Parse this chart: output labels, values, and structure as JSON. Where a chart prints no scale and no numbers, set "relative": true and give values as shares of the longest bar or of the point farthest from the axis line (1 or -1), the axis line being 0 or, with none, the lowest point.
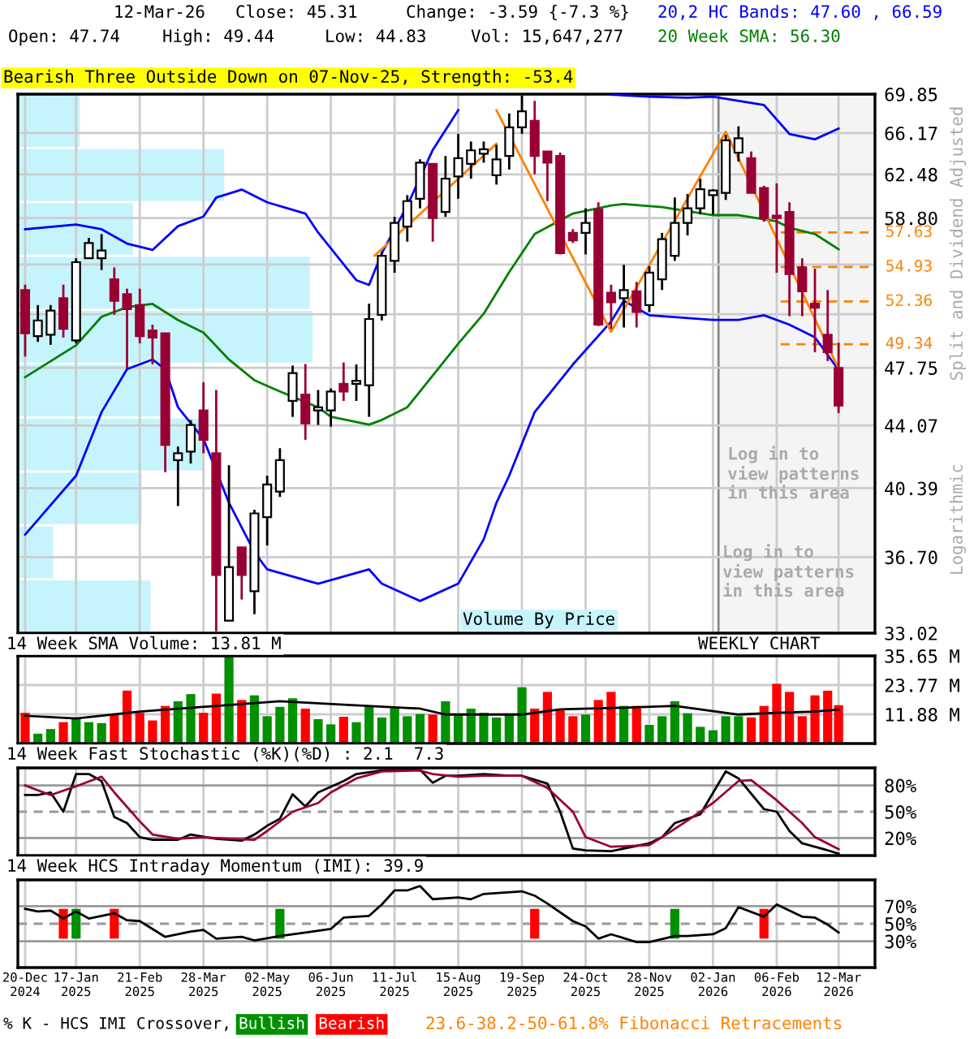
{
  "chart_data": [
    {
      "type": "candlestick",
      "title": "Bearish Three Outside Down on 07-Nov-25, Strength: -53.4",
      "ylabel": "Split and Dividend Adjusted",
      "log": true,
      "grid": true,
      "legend": "top right",
      "tick_labels": "y",
      "x": [
        "2024-12-20",
        "2024-12-27",
        "2025-01-03",
        "2025-01-10",
        "2025-01-17",
        "2025-01-24",
        "2025-01-31",
        "2025-02-07",
        "2025-02-14",
        "2025-02-21",
        "2025-02-28",
        "2025-03-07",
        "2025-03-14",
        "2025-03-21",
        "2025-03-28",
        "2025-04-04",
        "2025-04-11",
        "2025-04-18",
        "2025-04-25",
        "2025-05-02",
        "2025-05-09",
        "2025-05-16",
        "2025-05-23",
        "2025-05-30",
        "2025-06-06",
        "2025-06-13",
        "2025-06-20",
        "2025-06-27",
        "2025-07-04",
        "2025-07-11",
        "2025-07-18",
        "2025-07-25",
        "2025-08-01",
        "2025-08-08",
        "2025-08-15",
        "2025-08-22",
        "2025-08-29",
        "2025-09-05",
        "2025-09-12",
        "2025-09-19",
        "2025-09-26",
        "2025-10-03",
        "2025-10-10",
        "2025-10-17",
        "2025-10-24",
        "2025-10-31",
        "2025-11-07",
        "2025-11-14",
        "2025-11-21",
        "2025-11-28",
        "2025-12-05",
        "2025-12-12",
        "2025-12-19",
        "2025-12-26",
        "2026-01-02",
        "2026-01-09",
        "2026-01-16",
        "2026-01-23",
        "2026-01-30",
        "2026-02-06",
        "2026-02-13",
        "2026-02-20",
        "2026-02-27",
        "2026-03-06",
        "2026-03-12"
      ],
      "ohlc": [
        [
          53.2,
          53.6,
          48.5,
          50.1
        ],
        [
          49.9,
          52.1,
          49.5,
          51.0
        ],
        [
          50.0,
          52.1,
          49.3,
          51.7
        ],
        [
          52.6,
          53.6,
          49.8,
          50.4
        ],
        [
          49.6,
          55.6,
          49.4,
          55.3
        ],
        [
          55.6,
          57.2,
          55.6,
          56.8
        ],
        [
          55.6,
          57.5,
          54.7,
          56.2
        ],
        [
          54.0,
          54.9,
          51.4,
          52.4
        ],
        [
          52.9,
          53.3,
          47.7,
          51.8
        ],
        [
          52.1,
          53.3,
          49.4,
          49.9
        ],
        [
          50.3,
          50.7,
          47.97,
          49.8
        ],
        [
          50.1,
          50.1,
          41.3,
          42.9
        ],
        [
          42.0,
          42.8,
          39.4,
          42.4
        ],
        [
          42.5,
          44.4,
          41.8,
          44.1
        ],
        [
          45.0,
          46.8,
          42.4,
          43.2
        ],
        [
          42.4,
          46.3,
          33.1,
          35.8
        ],
        [
          33.6,
          41.7,
          33.6,
          36.2
        ],
        [
          37.2,
          37.2,
          34.6,
          35.8
        ],
        [
          35.0,
          39.2,
          33.9,
          39.0
        ],
        [
          38.8,
          41.1,
          37.3,
          40.6
        ],
        [
          40.2,
          42.7,
          39.9,
          42.0
        ],
        [
          45.6,
          47.9,
          44.6,
          47.4
        ],
        [
          46.0,
          48.0,
          43.2,
          44.2
        ],
        [
          45.0,
          46.3,
          44.1,
          45.2
        ],
        [
          45.0,
          46.4,
          44.0,
          46.2
        ],
        [
          46.7,
          48.1,
          45.6,
          46.2
        ],
        [
          46.7,
          47.97,
          45.6,
          46.9
        ],
        [
          46.6,
          52.2,
          44.6,
          51.1
        ],
        [
          51.4,
          56.1,
          51.0,
          55.8
        ],
        [
          55.4,
          58.9,
          54.5,
          58.4
        ],
        [
          58.1,
          60.7,
          56.9,
          60.2
        ],
        [
          60.4,
          63.8,
          59.6,
          63.5
        ],
        [
          63.4,
          63.4,
          56.9,
          58.8
        ],
        [
          59.3,
          64.1,
          58.9,
          62.1
        ],
        [
          62.3,
          66.1,
          60.4,
          63.9
        ],
        [
          63.4,
          65.4,
          62.1,
          64.6
        ],
        [
          64.3,
          65.4,
          63.5,
          64.7
        ],
        [
          62.4,
          65.1,
          61.6,
          63.8
        ],
        [
          64.1,
          68.0,
          62.9,
          66.7
        ],
        [
          66.7,
          69.7,
          66.1,
          68.2
        ],
        [
          67.3,
          69.2,
          62.5,
          64.1
        ],
        [
          64.5,
          64.5,
          60.2,
          63.5
        ],
        [
          64.1,
          64.4,
          55.9,
          56.0
        ],
        [
          57.6,
          57.9,
          56.8,
          57.0
        ],
        [
          57.6,
          59.6,
          55.9,
          58.4
        ],
        [
          59.5,
          60.1,
          50.6,
          50.7
        ],
        [
          53.0,
          53.6,
          50.4,
          52.3
        ],
        [
          52.6,
          55.1,
          50.5,
          53.2
        ],
        [
          53.1,
          53.8,
          50.5,
          51.6
        ],
        [
          52.1,
          55.0,
          51.6,
          54.5
        ],
        [
          54.0,
          57.6,
          53.2,
          57.1
        ],
        [
          55.8,
          60.5,
          55.4,
          58.4
        ],
        [
          58.4,
          60.8,
          57.4,
          59.6
        ],
        [
          59.6,
          62.1,
          59.1,
          61.2
        ],
        [
          60.7,
          61.2,
          59.1,
          61.1
        ],
        [
          60.9,
          66.0,
          60.3,
          65.5
        ],
        [
          64.4,
          66.8,
          63.6,
          65.7
        ],
        [
          63.9,
          64.5,
          60.9,
          60.9
        ],
        [
          61.3,
          61.5,
          58.5,
          58.8
        ],
        [
          59.0,
          61.7,
          54.5,
          58.8
        ],
        [
          59.3,
          60.1,
          51.3,
          54.4
        ],
        [
          54.9,
          55.6,
          51.3,
          53.1
        ],
        [
          52.2,
          54.8,
          48.8,
          51.9
        ],
        [
          50.0,
          53.2,
          48.2,
          48.8
        ],
        [
          47.74,
          49.44,
          44.83,
          45.31
        ]
      ],
      "colors": [
        "#990033",
        "#ffffff",
        "#ffffff",
        "#990033",
        "#ffffff",
        "#ffffff",
        "#ffffff",
        "#990033",
        "#990033",
        "#990033",
        "#990033",
        "#990033",
        "#ffffff",
        "#ffffff",
        "#990033",
        "#990033",
        "#ffffff",
        "#990033",
        "#ffffff",
        "#ffffff",
        "#ffffff",
        "#ffffff",
        "#990033",
        "#ffffff",
        "#ffffff",
        "#990033",
        "#ffffff",
        "#ffffff",
        "#ffffff",
        "#ffffff",
        "#ffffff",
        "#ffffff",
        "#990033",
        "#ffffff",
        "#ffffff",
        "#ffffff",
        "#ffffff",
        "#ffffff",
        "#ffffff",
        "#ffffff",
        "#990033",
        "#990033",
        "#990033",
        "#990033",
        "#ffffff",
        "#990033",
        "#990033",
        "#ffffff",
        "#990033",
        "#ffffff",
        "#ffffff",
        "#ffffff",
        "#ffffff",
        "#ffffff",
        "#ffffff",
        "#ffffff",
        "#ffffff",
        "#990033",
        "#990033",
        "#990033",
        "#990033",
        "#990033",
        "#990033",
        "#990033",
        "#990033"
      ],
      "series": [
        {
          "type": "line",
          "name": "20,2 HC Bands: 47.60 , 66.59",
          "color": "#0000ff",
          "x": [
            "2024-12-20",
            "2025-01-17",
            "2025-01-31",
            "2025-02-14",
            "2025-02-28",
            "2025-03-14",
            "2025-03-28",
            "2025-04-04",
            "2025-04-18",
            "2025-05-02",
            "2025-05-23",
            "2025-05-30",
            "2025-06-20",
            "2025-06-27",
            "2025-07-04",
            "2025-07-18",
            "2025-08-01",
            "2025-08-15",
            "2025-08-22",
            "2025-11-07",
            "2025-11-28",
            "2025-12-19",
            "2026-01-02",
            "2026-01-30",
            "2026-02-13",
            "2026-02-27",
            "2026-03-12"
          ],
          "values": [
            57.89,
            58.27,
            57.89,
            56.75,
            56.25,
            58.14,
            58.92,
            60.5,
            61.17,
            60.1,
            59.17,
            57.63,
            53.93,
            53.58,
            56.0,
            59.83,
            64.64,
            68.32,
            null,
            69.8,
            69.6,
            69.5,
            69.6,
            68.8,
            66.09,
            65.6,
            66.59
          ]
        },
        {
          "type": "line",
          "color": "#0000ff",
          "x": [
            "2024-12-20",
            "2025-01-17",
            "2025-01-31",
            "2025-02-14",
            "2025-02-28",
            "2025-03-07",
            "2025-03-14",
            "2025-03-28",
            "2025-04-11",
            "2025-04-25",
            "2025-05-02",
            "2025-05-30",
            "2025-06-27",
            "2025-07-04",
            "2025-07-25",
            "2025-08-15",
            "2025-08-29",
            "2025-09-05",
            "2025-09-12",
            "2025-09-26",
            "2025-10-17",
            "2025-11-07",
            "2025-11-14",
            "2025-11-28",
            "2026-01-02",
            "2026-01-16",
            "2026-01-30",
            "2026-02-13",
            "2026-02-27",
            "2026-03-12"
          ],
          "values": [
            37.87,
            41.1,
            44.9,
            47.66,
            48.3,
            47.66,
            45.2,
            43.25,
            39.58,
            36.96,
            36.08,
            35.37,
            36.08,
            35.37,
            34.53,
            35.37,
            37.62,
            39.58,
            41.1,
            44.9,
            47.97,
            50.92,
            52.41,
            51.37,
            51.03,
            51.03,
            51.37,
            50.7,
            49.82,
            47.6
          ]
        },
        {
          "type": "line",
          "name": "20 Week SMA: 56.30",
          "color": "#008000",
          "x": [
            "2024-12-20",
            "2025-01-17",
            "2025-01-31",
            "2025-02-14",
            "2025-02-28",
            "2025-03-14",
            "2025-03-28",
            "2025-04-11",
            "2025-04-25",
            "2025-05-09",
            "2025-05-30",
            "2025-06-06",
            "2025-06-27",
            "2025-07-04",
            "2025-07-18",
            "2025-08-01",
            "2025-08-15",
            "2025-08-29",
            "2025-09-12",
            "2025-09-26",
            "2025-10-17",
            "2025-11-07",
            "2025-11-14",
            "2025-12-05",
            "2026-01-02",
            "2026-01-16",
            "2026-02-06",
            "2026-02-13",
            "2026-02-27",
            "2026-03-12"
          ],
          "values": [
            47.13,
            49.27,
            51.26,
            51.95,
            52.18,
            51.03,
            50.14,
            48.3,
            46.93,
            46.21,
            45.2,
            44.61,
            44.12,
            44.41,
            45.2,
            47.24,
            49.38,
            51.48,
            54.54,
            57.51,
            59.17,
            59.83,
            59.96,
            59.7,
            59.04,
            59.04,
            58.53,
            58.01,
            57.51,
            56.3
          ]
        },
        {
          "type": "line",
          "color": "#ff8000",
          "x": [
            "2025-06-30",
            "2025-09-05"
          ],
          "values": [
            55.8,
            65.2
          ]
        },
        {
          "type": "line",
          "color": "#ff8000",
          "x": [
            "2025-09-05",
            "2025-11-07",
            "2026-01-09",
            "2026-03-12"
          ],
          "values": [
            68.3,
            50.2,
            66.3,
            47.7
          ]
        }
      ],
      "ref_lines": [
        {
          "axis": "y",
          "value": 57.63,
          "label": "57.63",
          "color": "#ff8000",
          "line_style": "dashed"
        },
        {
          "axis": "y",
          "value": 54.93,
          "label": "54.93",
          "color": "#ff8000",
          "line_style": "dashed"
        },
        {
          "axis": "y",
          "value": 52.36,
          "label": "52.36",
          "color": "#ff8000",
          "line_style": "dashed"
        },
        {
          "axis": "y",
          "value": 49.34,
          "label": "49.34",
          "color": "#ff8000",
          "line_style": "dashed"
        }
      ],
      "bands": [
        {
          "axis": "x",
          "from": "2026-01-05",
          "to": "2026-04-01",
          "label": "Log in to\nview patterns\nin this area",
          "color": "#f4f4f4"
        }
      ],
      "annotations": [
        "12-Mar-26",
        "Close: 45.31",
        "Change: -3.59 {-7.3 %}",
        "Open: 47.74",
        "High: 49.44",
        "Low: 44.83",
        "Vol: 15,647,277",
        "Logarithmic",
        "Log in to\nview patterns\nin this area",
        "23.6-38.2-50-61.8% Fibonacci Retracements",
        "Volume By Price"
      ],
      "xlim": [
        "2024-12-16",
        "2026-04-01"
      ],
      "ylim": [
        33.02,
        69.85
      ],
      "xticks": [
        {
          "value": "2024-12-20",
          "label": null
        },
        {
          "value": "2025-01-17",
          "label": null
        },
        {
          "value": "2025-02-21",
          "label": null
        },
        {
          "value": "2025-03-28",
          "label": null
        },
        {
          "value": "2025-05-02",
          "label": null
        },
        {
          "value": "2025-06-06",
          "label": null
        },
        {
          "value": "2025-07-11",
          "label": null
        },
        {
          "value": "2025-08-15",
          "label": null
        },
        {
          "value": "2025-09-19",
          "label": null
        },
        {
          "value": "2025-10-24",
          "label": null
        },
        {
          "value": "2025-11-28",
          "label": null
        },
        {
          "value": "2026-01-02",
          "label": null
        },
        {
          "value": "2026-02-06",
          "label": null
        },
        {
          "value": "2026-03-12",
          "label": null
        }
      ],
      "yticks": [
        69.85,
        66.17,
        62.48,
        {
          "value": 58.8,
          "label": "58.80"
        },
        {
          "value": 55.12,
          "label": null
        },
        {
          "value": 51.44,
          "label": null
        },
        47.75,
        44.07,
        40.39,
        {
          "value": 36.7,
          "label": "36.70"
        },
        33.02
      ]
    },
    {
      "type": "bar",
      "orientation": "horizontal",
      "relative": true,
      "color": "#c6f4fc",
      "categories": [
        null,
        null,
        null,
        null,
        null,
        null,
        null,
        null,
        null,
        null
      ],
      "values": [
        0.21,
        0.7,
        0.39,
        0.99,
        1,
        0.5,
        0.63,
        0.42,
        0.12,
        0.45
      ]
    },
    {
      "type": "bar",
      "title": "14 Week SMA Volume: 13.81 M",
      "grid": true,
      "tick_labels": "y",
      "annotations": [
        "WEEKLY CHART"
      ],
      "x": [
        "2024-12-20",
        "2024-12-27",
        "2025-01-03",
        "2025-01-10",
        "2025-01-17",
        "2025-01-24",
        "2025-01-31",
        "2025-02-07",
        "2025-02-14",
        "2025-02-21",
        "2025-02-28",
        "2025-03-07",
        "2025-03-14",
        "2025-03-21",
        "2025-03-28",
        "2025-04-04",
        "2025-04-11",
        "2025-04-18",
        "2025-04-25",
        "2025-05-02",
        "2025-05-09",
        "2025-05-16",
        "2025-05-23",
        "2025-05-30",
        "2025-06-06",
        "2025-06-13",
        "2025-06-20",
        "2025-06-27",
        "2025-07-04",
        "2025-07-11",
        "2025-07-18",
        "2025-07-25",
        "2025-08-01",
        "2025-08-08",
        "2025-08-15",
        "2025-08-22",
        "2025-08-29",
        "2025-09-05",
        "2025-09-12",
        "2025-09-19",
        "2025-09-26",
        "2025-10-03",
        "2025-10-10",
        "2025-10-17",
        "2025-10-24",
        "2025-10-31",
        "2025-11-07",
        "2025-11-14",
        "2025-11-21",
        "2025-11-28",
        "2025-12-05",
        "2025-12-12",
        "2025-12-19",
        "2025-12-26",
        "2026-01-02",
        "2026-01-09",
        "2026-01-16",
        "2026-01-23",
        "2026-01-30",
        "2026-02-06",
        "2026-02-13",
        "2026-02-20",
        "2026-02-27",
        "2026-03-06",
        "2026-03-12"
      ],
      "series": [
        {
          "type": "bar",
          "values": [
            12.5,
            4.0,
            5.9,
            8.7,
            10.6,
            8.7,
            8.3,
            11.8,
            21.5,
            12.5,
            9.4,
            15.3,
            17.2,
            20.1,
            12.5,
            20.3,
            35.6,
            17.7,
            19.6,
            11.1,
            14.9,
            18.4,
            14.2,
            9.9,
            7.8,
            10.9,
            8.7,
            14.9,
            10.6,
            14.6,
            11.1,
            12.0,
            11.8,
            17.2,
            11.8,
            14.2,
            12.5,
            10.6,
            11.8,
            22.9,
            14.2,
            21.0,
            13.5,
            11.1,
            11.8,
            17.7,
            21.0,
            15.3,
            15.3,
            7.6,
            11.1,
            17.2,
            12.3,
            6.8,
            5.4,
            11.1,
            11.1,
            10.6,
            15.3,
            24.3,
            21.0,
            11.1,
            19.6,
            21.5,
            15.6
          ],
          "colors": [
            "#ff0000",
            "#009000",
            "#009000",
            "#ff0000",
            "#009000",
            "#009000",
            "#009000",
            "#ff0000",
            "#ff0000",
            "#ff0000",
            "#ff0000",
            "#ff0000",
            "#009000",
            "#009000",
            "#ff0000",
            "#ff0000",
            "#009000",
            "#ff0000",
            "#009000",
            "#009000",
            "#009000",
            "#009000",
            "#ff0000",
            "#009000",
            "#009000",
            "#ff0000",
            "#009000",
            "#009000",
            "#009000",
            "#009000",
            "#009000",
            "#009000",
            "#ff0000",
            "#009000",
            "#009000",
            "#009000",
            "#009000",
            "#009000",
            "#009000",
            "#009000",
            "#ff0000",
            "#ff0000",
            "#ff0000",
            "#ff0000",
            "#009000",
            "#ff0000",
            "#ff0000",
            "#009000",
            "#ff0000",
            "#009000",
            "#009000",
            "#009000",
            "#009000",
            "#009000",
            "#009000",
            "#009000",
            "#009000",
            "#ff0000",
            "#ff0000",
            "#ff0000",
            "#ff0000",
            "#ff0000",
            "#ff0000",
            "#ff0000",
            "#ff0000"
          ]
        },
        {
          "type": "line",
          "color": "#000000",
          "x": [
            "2024-12-20",
            "2025-01-17",
            "2025-02-21",
            "2025-05-09",
            "2025-06-13",
            "2025-07-25",
            "2025-08-08",
            "2025-09-19",
            "2025-10-10",
            "2025-11-14",
            "2025-12-12",
            "2026-01-16",
            "2026-02-06",
            "2026-02-27",
            "2026-03-12"
          ],
          "values": [
            11.3,
            10.2,
            13.0,
            17.2,
            15.8,
            14.2,
            11.8,
            11.8,
            13.9,
            14.6,
            15.3,
            11.8,
            12.5,
            13.0,
            13.81
          ]
        }
      ],
      "xlim": [
        "2024-12-16",
        "2026-04-01"
      ],
      "ylim": [
        0,
        35.65
      ],
      "xticks": [
        {
          "value": "2024-12-20",
          "label": null
        },
        {
          "value": "2025-01-17",
          "label": null
        },
        {
          "value": "2025-02-21",
          "label": null
        },
        {
          "value": "2025-03-28",
          "label": null
        },
        {
          "value": "2025-05-02",
          "label": null
        },
        {
          "value": "2025-06-06",
          "label": null
        },
        {
          "value": "2025-07-11",
          "label": null
        },
        {
          "value": "2025-08-15",
          "label": null
        },
        {
          "value": "2025-09-19",
          "label": null
        },
        {
          "value": "2025-10-24",
          "label": null
        },
        {
          "value": "2025-11-28",
          "label": null
        },
        {
          "value": "2026-01-02",
          "label": null
        },
        {
          "value": "2026-02-06",
          "label": null
        },
        {
          "value": "2026-03-12",
          "label": null
        }
      ],
      "yticks": [
        {
          "value": 11.88,
          "label": "11.88 M"
        },
        {
          "value": 23.77,
          "label": "23.77 M"
        },
        {
          "value": 35.65,
          "label": "35.65 M"
        }
      ]
    },
    {
      "type": "line",
      "title": "14 Week Fast Stochastic (%K)(%D) : 2.1  7.3",
      "grid": "x",
      "tick_labels": "y",
      "series": [
        {
          "color": "#000000",
          "x": [
            "2024-12-20",
            "2024-12-27",
            "2025-01-03",
            "2025-01-10",
            "2025-01-17",
            "2025-01-24",
            "2025-01-31",
            "2025-02-07",
            "2025-02-14",
            "2025-02-21",
            "2025-02-28",
            "2025-03-14",
            "2025-03-21",
            "2025-04-04",
            "2025-04-18",
            "2025-04-25",
            "2025-05-02",
            "2025-05-09",
            "2025-05-16",
            "2025-05-23",
            "2025-05-30",
            "2025-06-13",
            "2025-06-20",
            "2025-07-04",
            "2025-07-25",
            "2025-08-01",
            "2025-08-08",
            "2025-08-15",
            "2025-08-29",
            "2025-09-12",
            "2025-09-19",
            "2025-10-03",
            "2025-10-10",
            "2025-10-17",
            "2025-10-24",
            "2025-11-07",
            "2025-11-28",
            "2025-12-05",
            "2025-12-12",
            "2025-12-26",
            "2026-01-09",
            "2026-01-16",
            "2026-01-30",
            "2026-02-06",
            "2026-02-13",
            "2026-02-20",
            "2026-03-06",
            "2026-03-12"
          ],
          "values": [
            69,
            69,
            72,
            50,
            93,
            93,
            85,
            44,
            37,
            21,
            18,
            18,
            24,
            19,
            17,
            24,
            34,
            42,
            70,
            56,
            72,
            85,
            93,
            97,
            98,
            83,
            91,
            91,
            93,
            91,
            91,
            82,
            50,
            8,
            6,
            5,
            14,
            21,
            37,
            47,
            96,
            88,
            53,
            50,
            28,
            14,
            6,
            2.1
          ]
        },
        {
          "color": "#990033",
          "x": [
            "2024-12-20",
            "2025-01-03",
            "2025-01-17",
            "2025-01-31",
            "2025-02-07",
            "2025-02-21",
            "2025-02-28",
            "2025-03-14",
            "2025-03-28",
            "2025-04-11",
            "2025-04-25",
            "2025-05-02",
            "2025-05-16",
            "2025-05-30",
            "2025-06-06",
            "2025-06-20",
            "2025-07-04",
            "2025-07-25",
            "2025-08-01",
            "2025-08-15",
            "2025-08-29",
            "2025-09-19",
            "2025-10-03",
            "2025-10-17",
            "2025-10-24",
            "2025-11-07",
            "2025-11-28",
            "2025-12-05",
            "2025-12-19",
            "2026-01-02",
            "2026-01-16",
            "2026-01-23",
            "2026-02-06",
            "2026-02-20",
            "2026-02-27",
            "2026-03-12"
          ],
          "values": [
            80,
            69,
            79,
            90,
            72,
            39,
            24,
            19,
            21,
            19,
            18,
            28,
            50,
            60,
            72,
            88,
            96,
            97,
            93,
            90,
            91,
            91,
            77,
            50,
            21,
            10,
            12,
            21,
            40,
            60,
            85,
            86,
            63,
            37,
            21,
            7.3
          ]
        }
      ],
      "ref_lines": [
        {
          "axis": "y",
          "value": 80,
          "color": "#999999",
          "line_style": "solid"
        },
        {
          "axis": "y",
          "value": 50,
          "color": "#999999",
          "line_style": "dashed"
        },
        {
          "axis": "y",
          "value": 20,
          "color": "#999999",
          "line_style": "solid"
        }
      ],
      "xlim": [
        "2024-12-16",
        "2026-04-01"
      ],
      "ylim": [
        0,
        100
      ],
      "xticks": [
        {
          "value": "2024-12-20",
          "label": null
        },
        {
          "value": "2025-01-17",
          "label": null
        },
        {
          "value": "2025-02-21",
          "label": null
        },
        {
          "value": "2025-03-28",
          "label": null
        },
        {
          "value": "2025-05-02",
          "label": null
        },
        {
          "value": "2025-06-06",
          "label": null
        },
        {
          "value": "2025-07-11",
          "label": null
        },
        {
          "value": "2025-08-15",
          "label": null
        },
        {
          "value": "2025-09-19",
          "label": null
        },
        {
          "value": "2025-10-24",
          "label": null
        },
        {
          "value": "2025-11-28",
          "label": null
        },
        {
          "value": "2026-01-02",
          "label": null
        },
        {
          "value": "2026-02-06",
          "label": null
        },
        {
          "value": "2026-03-12",
          "label": null
        }
      ],
      "yticks": [
        {
          "value": 20,
          "label": "20%"
        },
        {
          "value": 50,
          "label": "50%"
        },
        {
          "value": 80,
          "label": "80%"
        }
      ]
    },
    {
      "type": "line",
      "title": "14 Week HCS Intraday Momentum (IMI): 39.9",
      "grid": "x",
      "legend": "bottom",
      "legend_title": "% K - HCS IMI Crossover,",
      "series": [
        {
          "color": "#000000",
          "x": [
            "2024-12-20",
            "2024-12-27",
            "2025-01-03",
            "2025-01-10",
            "2025-01-17",
            "2025-01-24",
            "2025-02-07",
            "2025-02-14",
            "2025-02-21",
            "2025-03-07",
            "2025-03-21",
            "2025-03-28",
            "2025-04-04",
            "2025-04-18",
            "2025-04-25",
            "2025-05-09",
            "2025-05-23",
            "2025-06-06",
            "2025-06-13",
            "2025-06-27",
            "2025-07-04",
            "2025-07-11",
            "2025-07-18",
            "2025-07-25",
            "2025-08-01",
            "2025-08-15",
            "2025-08-22",
            "2025-08-29",
            "2025-09-19",
            "2025-09-26",
            "2025-10-03",
            "2025-10-17",
            "2025-10-24",
            "2025-10-31",
            "2025-11-07",
            "2025-11-21",
            "2025-11-28",
            "2025-12-12",
            "2025-12-19",
            "2026-01-02",
            "2026-01-09",
            "2026-01-16",
            "2026-01-30",
            "2026-02-06",
            "2026-02-20",
            "2026-02-27",
            "2026-03-06",
            "2026-03-12"
          ],
          "values": [
            67,
            64,
            65,
            56,
            64,
            56,
            62,
            54,
            53,
            35,
            41,
            43,
            33,
            35,
            31,
            36,
            40,
            44,
            57,
            59,
            72,
            88,
            88,
            93,
            78,
            80,
            78,
            84,
            87,
            82,
            73,
            53,
            47,
            33,
            38,
            29,
            29,
            36,
            36,
            38,
            45,
            69,
            58,
            72,
            58,
            57,
            49,
            39.9
          ]
        },
        {
          "type": "bar",
          "name": "Bullish",
          "color": "#009000",
          "x": [
            "2025-01-17",
            "2025-05-09",
            "2025-12-12"
          ],
          "base": [
            33,
            33,
            33
          ],
          "values": [
            34,
            34,
            34
          ]
        },
        {
          "type": "bar",
          "name": "Bearish",
          "color": "#ff0000",
          "x": [
            "2025-01-10",
            "2025-02-07",
            "2025-09-26",
            "2026-01-30"
          ],
          "base": [
            33,
            33,
            33,
            33
          ],
          "values": [
            34,
            34,
            34,
            34
          ]
        }
      ],
      "ref_lines": [
        {
          "axis": "y",
          "value": 70,
          "color": "#999999",
          "line_style": "solid"
        },
        {
          "axis": "y",
          "value": 50,
          "color": "#999999",
          "line_style": "dashed"
        },
        {
          "axis": "y",
          "value": 30,
          "color": "#999999",
          "line_style": "solid"
        }
      ],
      "xlim": [
        "2024-12-16",
        "2026-04-01"
      ],
      "ylim": [
        0,
        100
      ],
      "xticks": [
        {
          "value": "2024-12-20",
          "label": "20-Dec\n2024"
        },
        {
          "value": "2025-01-17",
          "label": "17-Jan\n2025"
        },
        {
          "value": "2025-02-21",
          "label": "21-Feb\n2025"
        },
        {
          "value": "2025-03-28",
          "label": "28-Mar\n2025"
        },
        {
          "value": "2025-05-02",
          "label": "02-May\n2025"
        },
        {
          "value": "2025-06-06",
          "label": "06-Jun\n2025"
        },
        {
          "value": "2025-07-11",
          "label": "11-Jul\n2025"
        },
        {
          "value": "2025-08-15",
          "label": "15-Aug\n2025"
        },
        {
          "value": "2025-09-19",
          "label": "19-Sep\n2025"
        },
        {
          "value": "2025-10-24",
          "label": "24-Oct\n2025"
        },
        {
          "value": "2025-11-28",
          "label": "28-Nov\n2025"
        },
        {
          "value": "2026-01-02",
          "label": "02-Jan\n2026"
        },
        {
          "value": "2026-02-06",
          "label": "06-Feb\n2026"
        },
        {
          "value": "2026-03-12",
          "label": "12-Mar\n2026"
        }
      ],
      "yticks": [
        {
          "value": 30,
          "label": "30%"
        },
        {
          "value": 50,
          "label": "50%"
        },
        {
          "value": 70,
          "label": "70%"
        }
      ]
    }
  ]
}
